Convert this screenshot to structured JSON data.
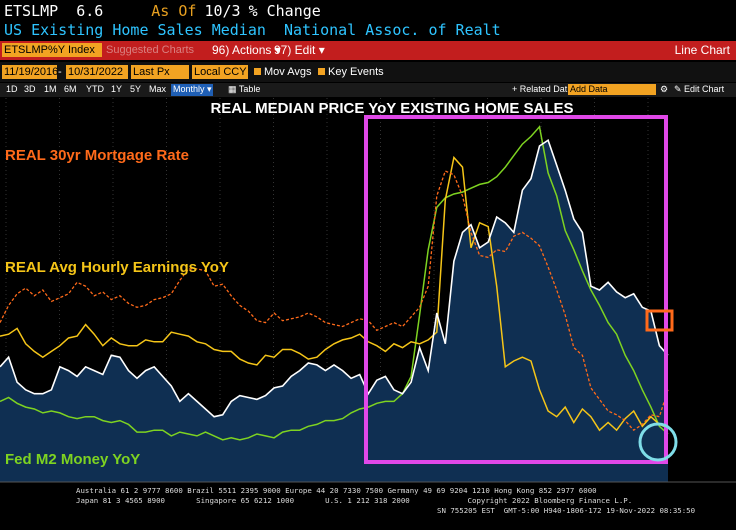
{
  "header": {
    "ticker": "ETSLMP",
    "value": "6.6",
    "as_of_label": "As Of",
    "as_of_value": "10/3",
    "change_label": "% Change",
    "description": "US Existing Home Sales Median  National Assoc. of Realt"
  },
  "toolbar": {
    "index_box": "ETSLMP%Y Index",
    "suggested": "Suggested Charts",
    "actions": "96) Actions ▾",
    "edit": "97) Edit ▾",
    "line_chart": "Line Chart"
  },
  "controls": {
    "start_date": "11/19/2016",
    "end_date": "10/31/2022",
    "price_type": "Last Px",
    "currency": "Local CCY",
    "mov_avgs": "Mov Avgs",
    "key_events": "Key Events"
  },
  "range_tabs": [
    "1D",
    "3D",
    "1M",
    "6M",
    "YTD",
    "1Y",
    "5Y",
    "Max"
  ],
  "monthly": "Monthly ▾",
  "table_label": "Table",
  "related_data": "+ Related Dat",
  "add_data": "Add Data",
  "edit_chart": "Edit Chart",
  "colors": {
    "mortgage": "#ff6a1a",
    "earnings": "#f5c518",
    "m2": "#7ed321",
    "price_line": "#ffffff",
    "price_fill": "#0f2f52",
    "highlight_box": "#e048e8",
    "circle": "#7fdde8"
  },
  "chart_data": {
    "type": "line",
    "title": "REAL MEDIAN PRICE YoY EXISTING HOME SALES",
    "annotations": [
      {
        "text": "REAL 30yr Mortgage Rate",
        "color": "#ff6a1a"
      },
      {
        "text": "REAL Avg Hourly Earnings YoY",
        "color": "#f5c518"
      },
      {
        "text": "Fed M2 Money YoY",
        "color": "#7ed321"
      }
    ],
    "x_range": [
      "2016-11",
      "2022-10"
    ],
    "series": [
      {
        "name": "Real Median Price YoY",
        "style": "area",
        "values": [
          6,
          6.5,
          5.2,
          4.8,
          4.6,
          4.6,
          4.8,
          6,
          5.8,
          5.5,
          6,
          5.8,
          5.6,
          6.6,
          6.5,
          5.8,
          5.4,
          5.8,
          6,
          5.5,
          5,
          4.2,
          4.6,
          4.2,
          3.8,
          3.4,
          3.5,
          4.2,
          4.5,
          4.4,
          4.3,
          4.5,
          4.9,
          5,
          5.5,
          5.8,
          6.2,
          6.1,
          5.8,
          6.1,
          5.8,
          5.4,
          5.6,
          4.6,
          5.3,
          5.5,
          4.8,
          4.6,
          5.2,
          7,
          5.8,
          8.8,
          7.2,
          11.5,
          13,
          13.4,
          12.2,
          12.5,
          13.8,
          13.5,
          13,
          15.2,
          15.8,
          17.5,
          17.8,
          16.5,
          15.2,
          13.7,
          13,
          10.2,
          10,
          10.4,
          9.9,
          9.6,
          9.8,
          9.1,
          8.9,
          7.1,
          6.6
        ]
      },
      {
        "name": "Real 30yr Mortgage Rate",
        "style": "dashed",
        "values": [
          8.3,
          9.2,
          9.8,
          10.1,
          9.7,
          10,
          9.4,
          9.6,
          9.8,
          10.4,
          10.2,
          9.7,
          9.9,
          9.5,
          9.7,
          9.3,
          9.1,
          9.2,
          9.5,
          9.6,
          9.8,
          10.5,
          11.1,
          11.1,
          11,
          10.2,
          10.3,
          9.7,
          9.2,
          8.9,
          8.4,
          8.3,
          8.8,
          8.4,
          8.5,
          8.6,
          8.8,
          8.6,
          8.3,
          8.2,
          8.1,
          8.3,
          8.5,
          8.4,
          7.9,
          8.1,
          8.3,
          8.1,
          8.6,
          9.1,
          10.2,
          14.9,
          16.2,
          16,
          14.9,
          13,
          11.8,
          11.7,
          12.1,
          12,
          12.8,
          13,
          12.7,
          12.3,
          11.2,
          10,
          8.7,
          7,
          6.6,
          4.9,
          4.3,
          3.7,
          3.5,
          3.2,
          2.7,
          3,
          3.5,
          3.4,
          4.8
        ]
      },
      {
        "name": "Real Avg Hourly Earnings YoY",
        "style": "solid",
        "values": [
          7.6,
          7.7,
          8,
          7.2,
          6.8,
          6.5,
          6.8,
          7.1,
          7.5,
          7.6,
          8.2,
          7.7,
          7.1,
          7.5,
          7.2,
          7.1,
          7.1,
          7.4,
          7.3,
          7.3,
          7.8,
          7.7,
          7.6,
          7.3,
          7.2,
          6.9,
          6.8,
          6.8,
          6.4,
          6.2,
          6.1,
          6.6,
          6.5,
          6.9,
          6.9,
          6.7,
          6.4,
          6.5,
          6.9,
          7.2,
          7.4,
          7.5,
          7.7,
          7.3,
          7.1,
          6.8,
          7.2,
          7,
          7.3,
          7.2,
          7.4,
          7.8,
          14.7,
          16.9,
          16.4,
          12.2,
          13.5,
          13.3,
          10.2,
          6,
          6.3,
          6.5,
          6.3,
          4.8,
          3.7,
          3.4,
          3.9,
          3.1,
          3.8,
          3.4,
          2.7,
          3.1,
          2.7,
          3.3,
          3.7,
          2.9,
          3.4,
          3,
          2.8
        ]
      },
      {
        "name": "Fed M2 Money YoY",
        "style": "solid",
        "values": [
          4.2,
          4.4,
          4.1,
          3.9,
          3.8,
          3.6,
          3.7,
          3.6,
          3.4,
          3.3,
          3.4,
          3.4,
          3.2,
          3.1,
          3.2,
          3,
          2.6,
          2.6,
          2.7,
          2.7,
          2.4,
          2.6,
          2.5,
          2.4,
          2.6,
          2.4,
          2.2,
          2.3,
          2.2,
          2.3,
          2.5,
          2.4,
          2.3,
          2.6,
          2.7,
          2.7,
          2.9,
          3,
          3.2,
          3.2,
          3.3,
          3.6,
          3.8,
          3.9,
          4.1,
          4.2,
          4.2,
          4.6,
          5.5,
          8.7,
          12.1,
          14.3,
          14.8,
          15,
          15.1,
          15.3,
          15.5,
          15.6,
          15.9,
          16.4,
          17,
          17.6,
          18,
          18.5,
          16.1,
          14.9,
          13.1,
          12.1,
          11,
          10,
          9.2,
          8.3,
          7.7,
          6.6,
          5.8,
          4.8,
          3.9,
          2.9,
          2.5
        ]
      }
    ],
    "footer_line1": "Australia 61 2 9777 8600 Brazil 5511 2395 9000 Europe 44 20 7330 7500 Germany 49 69 9204 1210 Hong Kong 852 2977 6000",
    "footer_line2": "Japan 81 3 4565 8900       Singapore 65 6212 1000       U.S. 1 212 318 2000             Copyright 2022 Bloomberg Finance L.P.",
    "footer_line3": "SN 755205 EST  GMT-5:00 H940-1806-172 19-Nov-2022 08:35:50"
  }
}
